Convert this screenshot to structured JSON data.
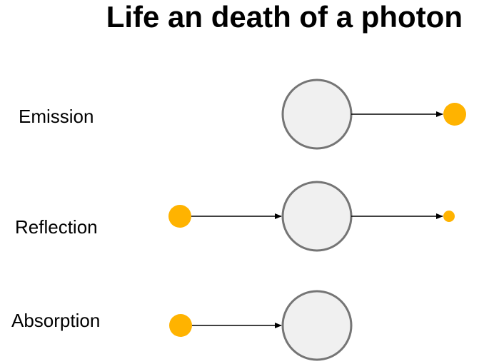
{
  "title": "Life an death of a photon",
  "colors": {
    "photon": "#FFB300",
    "object_fill": "#F0F0F0",
    "object_stroke": "#757575",
    "arrow": "#000000"
  },
  "rows": [
    {
      "label": "Emission"
    },
    {
      "label": "Reflection"
    },
    {
      "label": "Absorption"
    }
  ]
}
